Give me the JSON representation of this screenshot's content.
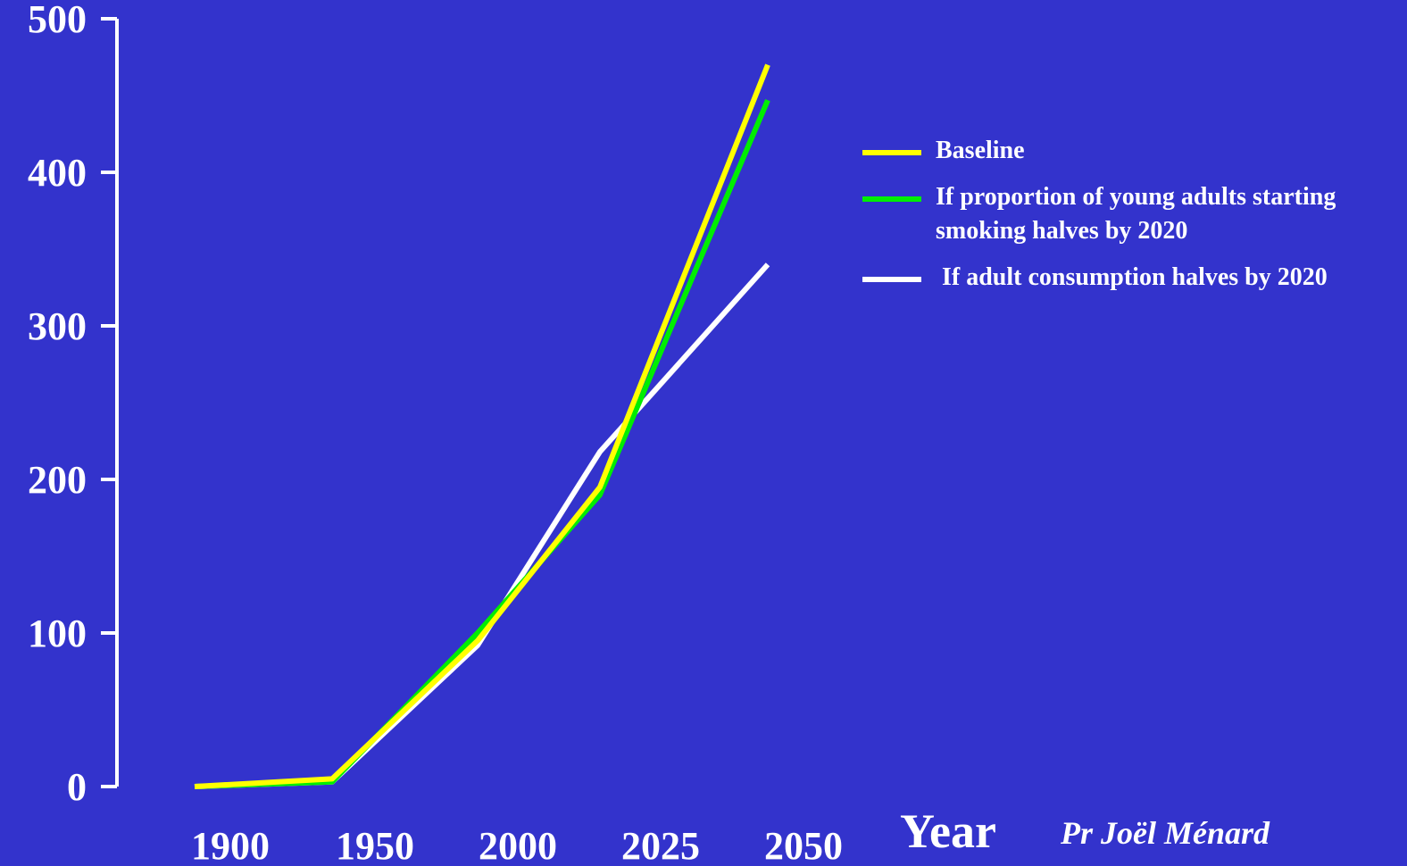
{
  "chart_data": {
    "type": "line",
    "title": "",
    "xlabel": "Year",
    "ylabel": "",
    "x_ticks": [
      "1900",
      "1950",
      "2000",
      "2025",
      "2050"
    ],
    "y_ticks": [
      "0",
      "100",
      "200",
      "300",
      "400",
      "500"
    ],
    "ylim": [
      0,
      500
    ],
    "grid": false,
    "legend_position": "right",
    "series": [
      {
        "name": "Baseline",
        "color": "#ffff00",
        "points": [
          [
            "1900",
            0
          ],
          [
            "1950",
            5
          ],
          [
            "2000",
            95
          ],
          [
            "2025",
            195
          ],
          [
            "2050",
            470
          ]
        ]
      },
      {
        "name": "If proportion of young adults starting smoking halves by 2020",
        "color": "#00ee00",
        "points": [
          [
            "1900",
            0
          ],
          [
            "1950",
            3
          ],
          [
            "2000",
            100
          ],
          [
            "2025",
            190
          ],
          [
            "2050",
            447
          ]
        ]
      },
      {
        "name": "If adult consumption halves by 2020",
        "color": "#ffffff",
        "points": [
          [
            "1900",
            0
          ],
          [
            "1950",
            3
          ],
          [
            "2000",
            92
          ],
          [
            "2025",
            218
          ],
          [
            "2050",
            340
          ]
        ]
      }
    ]
  },
  "legend": {
    "items": [
      {
        "lines": [
          "Baseline"
        ],
        "color": "#ffff00"
      },
      {
        "lines": [
          "If proportion of young adults starting",
          "smoking halves by 2020"
        ],
        "color": "#00ee00"
      },
      {
        "lines": [
          " If adult consumption halves by 2020"
        ],
        "color": "#ffffff"
      }
    ]
  },
  "credit": "Pr Joël Ménard"
}
